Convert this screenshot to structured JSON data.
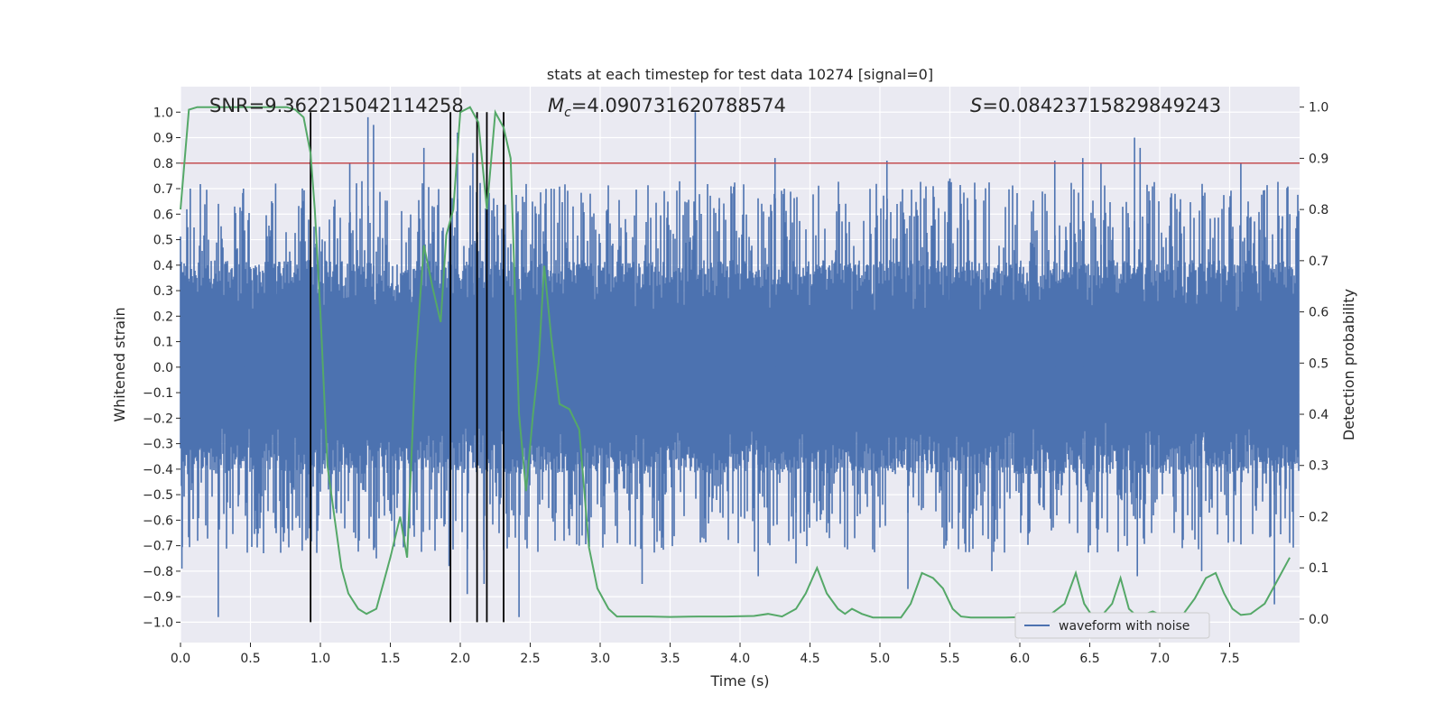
{
  "chart_data": {
    "type": "line",
    "title": "stats at each timestep for test data 10274 [signal=0]",
    "xlabel": "Time (s)",
    "ylabel_left": "Whitened strain",
    "ylabel_right": "Detection probability",
    "xlim": [
      0.0,
      8.0
    ],
    "ylim_left": [
      -1.08,
      1.1
    ],
    "ylim_right": [
      -0.046,
      1.04
    ],
    "x_ticks": [
      0.0,
      0.5,
      1.0,
      1.5,
      2.0,
      2.5,
      3.0,
      3.5,
      4.0,
      4.5,
      5.0,
      5.5,
      6.0,
      6.5,
      7.0,
      7.5
    ],
    "x_tick_labels": [
      "0.0",
      "0.5",
      "1.0",
      "1.5",
      "2.0",
      "2.5",
      "3.0",
      "3.5",
      "4.0",
      "4.5",
      "5.0",
      "5.5",
      "6.0",
      "6.5",
      "7.0",
      "7.5"
    ],
    "y_ticks_left": [
      1.0,
      0.9,
      0.8,
      0.7,
      0.6,
      0.5,
      0.4,
      0.3,
      0.2,
      0.1,
      0.0,
      -0.1,
      -0.2,
      -0.3,
      -0.4,
      -0.5,
      -0.6,
      -0.7,
      -0.8,
      -0.9,
      -1.0
    ],
    "y_tick_labels_left": [
      "1.0",
      "0.9",
      "0.8",
      "0.7",
      "0.6",
      "0.5",
      "0.4",
      "0.3",
      "0.2",
      "0.1",
      "0.0",
      "−0.1",
      "−0.2",
      "−0.3",
      "−0.4",
      "−0.5",
      "−0.6",
      "−0.7",
      "−0.8",
      "−0.9",
      "−1.0"
    ],
    "y_ticks_right": [
      1.0,
      0.9,
      0.8,
      0.7,
      0.6,
      0.5,
      0.4,
      0.3,
      0.2,
      0.1,
      0.0
    ],
    "y_tick_labels_right": [
      "1.0",
      "0.9",
      "0.8",
      "0.7",
      "0.6",
      "0.5",
      "0.4",
      "0.3",
      "0.2",
      "0.1",
      "0.0"
    ],
    "annotations": {
      "snr": "SNR=9.362215042114258",
      "mc_symbol": "M",
      "mc_sub": "c",
      "mc_value": "=4.090731620788574",
      "s_symbol": "S",
      "s_value": "=0.08423715829849243"
    },
    "legend": {
      "label": "waveform with noise",
      "location": "lower-right"
    },
    "threshold": {
      "value": 0.8,
      "axis": "left",
      "color": "#c44e52"
    },
    "vertical_lines": [
      0.93,
      1.93,
      2.12,
      2.19,
      2.31
    ],
    "waveform": {
      "name": "waveform with noise",
      "color": "#4c72b0",
      "duration": 8.0,
      "core_abs": 0.2,
      "band_abs": 0.42,
      "peaks": [
        [
          0.01,
          -0.79
        ],
        [
          0.07,
          0.7
        ],
        [
          0.27,
          -0.98
        ],
        [
          0.45,
          0.7
        ],
        [
          0.68,
          0.72
        ],
        [
          0.8,
          -0.64
        ],
        [
          0.87,
          -0.72
        ],
        [
          1.21,
          0.8
        ],
        [
          1.34,
          0.98
        ],
        [
          1.38,
          0.95
        ],
        [
          1.4,
          -0.75
        ],
        [
          1.6,
          -0.7
        ],
        [
          1.74,
          0.86
        ],
        [
          1.92,
          -0.78
        ],
        [
          1.98,
          0.92
        ],
        [
          2.05,
          -0.89
        ],
        [
          2.09,
          0.84
        ],
        [
          2.17,
          -0.85
        ],
        [
          2.42,
          -0.98
        ],
        [
          2.65,
          0.7
        ],
        [
          2.85,
          -0.7
        ],
        [
          3.3,
          -0.85
        ],
        [
          3.68,
          1.0
        ],
        [
          3.85,
          0.62
        ],
        [
          4.13,
          -0.82
        ],
        [
          4.25,
          0.82
        ],
        [
          4.4,
          -0.77
        ],
        [
          5.05,
          0.81
        ],
        [
          5.2,
          -0.87
        ],
        [
          5.5,
          0.74
        ],
        [
          5.8,
          -0.8
        ],
        [
          6.25,
          0.81
        ],
        [
          6.45,
          0.82
        ],
        [
          6.58,
          0.8
        ],
        [
          6.82,
          0.9
        ],
        [
          6.84,
          -0.82
        ],
        [
          6.86,
          0.86
        ],
        [
          7.3,
          -0.8
        ],
        [
          7.58,
          0.8
        ],
        [
          7.82,
          -0.93
        ],
        [
          7.93,
          0.6
        ]
      ]
    },
    "probability": {
      "name": "detection probability",
      "color": "#55a868",
      "axis": "right",
      "x": [
        0.0,
        0.06,
        0.12,
        0.2,
        0.3,
        0.4,
        0.5,
        0.6,
        0.7,
        0.76,
        0.82,
        0.88,
        0.93,
        0.96,
        1.0,
        1.05,
        1.1,
        1.15,
        1.2,
        1.27,
        1.33,
        1.4,
        1.45,
        1.5,
        1.57,
        1.62,
        1.68,
        1.74,
        1.8,
        1.86,
        1.9,
        1.95,
        2.0,
        2.07,
        2.13,
        2.19,
        2.25,
        2.31,
        2.36,
        2.42,
        2.47,
        2.52,
        2.56,
        2.6,
        2.65,
        2.71,
        2.78,
        2.85,
        2.92,
        2.98,
        3.06,
        3.12,
        3.2,
        3.35,
        3.5,
        3.7,
        3.9,
        4.1,
        4.2,
        4.3,
        4.4,
        4.47,
        4.55,
        4.62,
        4.7,
        4.75,
        4.8,
        4.87,
        4.95,
        5.05,
        5.15,
        5.22,
        5.3,
        5.38,
        5.45,
        5.52,
        5.58,
        5.65,
        5.72,
        5.8,
        5.9,
        6.05,
        6.2,
        6.32,
        6.4,
        6.46,
        6.52,
        6.58,
        6.66,
        6.72,
        6.78,
        6.84,
        6.9,
        6.95,
        7.03,
        7.1,
        7.17,
        7.25,
        7.33,
        7.4,
        7.46,
        7.52,
        7.58,
        7.65,
        7.75,
        7.85,
        7.93
      ],
      "y": [
        0.8,
        0.995,
        1.0,
        1.0,
        1.0,
        1.0,
        1.0,
        1.0,
        1.0,
        1.0,
        0.995,
        0.98,
        0.91,
        0.8,
        0.6,
        0.3,
        0.2,
        0.1,
        0.05,
        0.02,
        0.01,
        0.02,
        0.07,
        0.12,
        0.2,
        0.12,
        0.5,
        0.73,
        0.65,
        0.58,
        0.75,
        0.8,
        0.99,
        1.0,
        0.97,
        0.8,
        0.99,
        0.96,
        0.9,
        0.4,
        0.25,
        0.4,
        0.5,
        0.69,
        0.55,
        0.42,
        0.41,
        0.37,
        0.14,
        0.06,
        0.02,
        0.005,
        0.005,
        0.005,
        0.004,
        0.005,
        0.005,
        0.006,
        0.01,
        0.005,
        0.02,
        0.05,
        0.1,
        0.05,
        0.02,
        0.01,
        0.02,
        0.01,
        0.003,
        0.003,
        0.003,
        0.03,
        0.09,
        0.08,
        0.06,
        0.02,
        0.005,
        0.003,
        0.003,
        0.003,
        0.003,
        0.004,
        0.005,
        0.03,
        0.09,
        0.03,
        0.005,
        0.005,
        0.03,
        0.08,
        0.02,
        0.005,
        0.01,
        0.015,
        0.005,
        0.003,
        0.01,
        0.04,
        0.08,
        0.09,
        0.05,
        0.02,
        0.008,
        0.01,
        0.03,
        0.08,
        0.12
      ]
    }
  }
}
